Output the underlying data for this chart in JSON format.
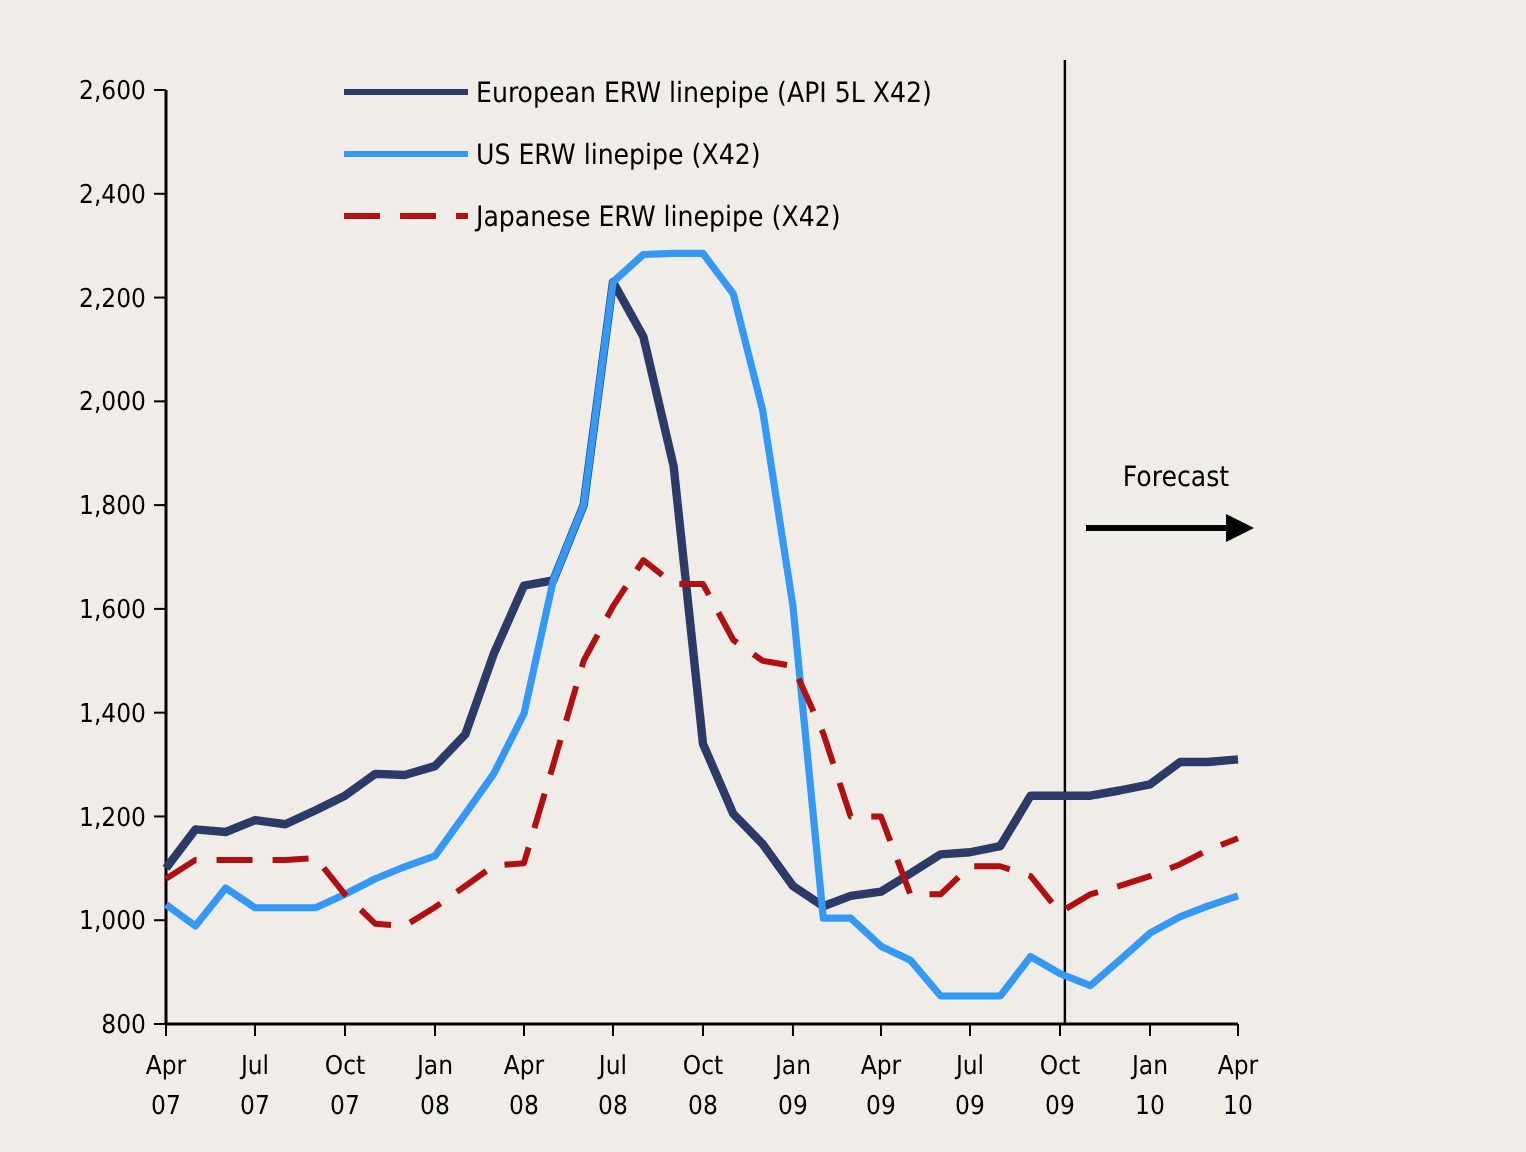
{
  "chart_data": {
    "type": "line",
    "x": [
      "2007-04",
      "2007-05",
      "2007-06",
      "2007-07",
      "2007-08",
      "2007-09",
      "2007-10",
      "2007-11",
      "2007-12",
      "2008-01",
      "2008-02",
      "2008-03",
      "2008-04",
      "2008-05",
      "2008-06",
      "2008-07",
      "2008-08",
      "2008-09",
      "2008-10",
      "2008-11",
      "2008-12",
      "2009-01",
      "2009-02",
      "2009-03",
      "2009-04",
      "2009-05",
      "2009-06",
      "2009-07",
      "2009-08",
      "2009-09",
      "2009-10",
      "2009-11",
      "2009-12",
      "2010-01",
      "2010-02",
      "2010-03",
      "2010-04"
    ],
    "series": [
      {
        "name": "European ERW linepipe (API 5L X42)",
        "color": "#2b3a67",
        "line_style": "solid",
        "values": [
          1100,
          1175,
          1170,
          1193,
          1185,
          1212,
          1240,
          1282,
          1280,
          1297,
          1358,
          1513,
          1645,
          1655,
          1800,
          2230,
          2125,
          1875,
          1340,
          1205,
          1147,
          1066,
          1027,
          1047,
          1055,
          1090,
          1127,
          1131,
          1143,
          1240,
          1240,
          1240,
          1250,
          1262,
          1305,
          1305,
          1310
        ]
      },
      {
        "name": "US ERW linepipe (X42)",
        "color": "#3399f5",
        "line_style": "solid",
        "values": [
          1030,
          989,
          1062,
          1024,
          1024,
          1024,
          1050,
          1080,
          1103,
          1124,
          1205,
          1282,
          1398,
          1655,
          1800,
          2230,
          2283,
          2285,
          2285,
          2207,
          1983,
          1605,
          1004,
          1004,
          950,
          923,
          854,
          854,
          854,
          930,
          897,
          874,
          923,
          975,
          1007,
          1027,
          1047
        ]
      },
      {
        "name": "Japanese ERW linepipe (X42)",
        "color": "#b01010",
        "line_style": "dashed",
        "values": [
          1080,
          1116,
          1116,
          1116,
          1116,
          1120,
          1050,
          993,
          989,
          1025,
          1066,
          1105,
          1110,
          1300,
          1500,
          1605,
          1694,
          1648,
          1648,
          1540,
          1500,
          1490,
          1360,
          1200,
          1200,
          1050,
          1050,
          1104,
          1104,
          1085,
          1015,
          1050,
          1066,
          1085,
          1108,
          1135,
          1158
        ]
      }
    ],
    "xlim": [
      "2007-04",
      "2010-04"
    ],
    "xticks": [
      {
        "value": "2007-04",
        "label": "Apr 07"
      },
      {
        "value": "2007-07",
        "label": "Jul 07"
      },
      {
        "value": "2007-10",
        "label": "Oct 07"
      },
      {
        "value": "2008-01",
        "label": "Jan 08"
      },
      {
        "value": "2008-04",
        "label": "Apr 08"
      },
      {
        "value": "2008-07",
        "label": "Jul 08"
      },
      {
        "value": "2008-10",
        "label": "Oct 08"
      },
      {
        "value": "2009-01",
        "label": "Jan 09"
      },
      {
        "value": "2009-04",
        "label": "Apr 09"
      },
      {
        "value": "2009-07",
        "label": "Jul 09"
      },
      {
        "value": "2009-10",
        "label": "Oct 09"
      },
      {
        "value": "2010-01",
        "label": "Jan 10"
      },
      {
        "value": "2010-04",
        "label": "Apr 10"
      }
    ],
    "ylim": [
      800,
      2600
    ],
    "yticks": [
      800,
      {
        "value": 1000,
        "label": "1,000"
      },
      {
        "value": 1200,
        "label": "1,200"
      },
      {
        "value": 1400,
        "label": "1,400"
      },
      {
        "value": 1600,
        "label": "1,600"
      },
      {
        "value": 1800,
        "label": "1,800"
      },
      {
        "value": 2000,
        "label": "2,000"
      },
      {
        "value": 2200,
        "label": "2,200"
      },
      {
        "value": 2400,
        "label": "2,400"
      },
      {
        "value": 2600,
        "label": "2,600"
      }
    ],
    "ref_lines": [
      {
        "axis": "x",
        "value": "2009-10-06",
        "color": "#000000",
        "line_style": "solid"
      }
    ],
    "annotations": [
      "Forecast"
    ],
    "legend": "top"
  }
}
